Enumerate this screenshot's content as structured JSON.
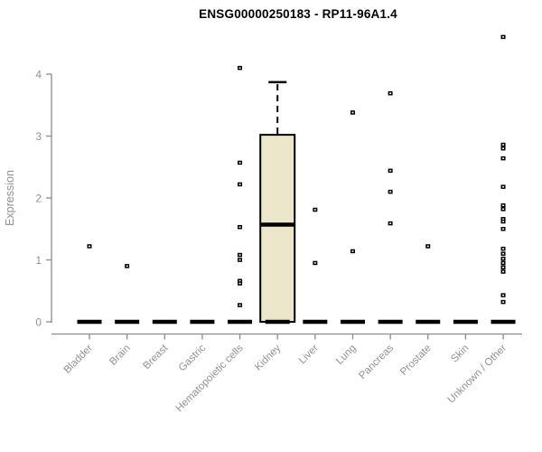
{
  "chart_data": {
    "type": "boxplot",
    "title": "ENSG00000250183 - RP11-96A1.4",
    "ylabel": "Expression",
    "ylim": [
      0,
      4.7
    ],
    "yticks": [
      0,
      1,
      2,
      3,
      4
    ],
    "grid": "off",
    "legend": null,
    "categories": [
      "Bladder",
      "Brain",
      "Breast",
      "Gastric",
      "Hematopoietic cells",
      "Kidney",
      "Liver",
      "Lung",
      "Pancreas",
      "Prostate",
      "Skin",
      "Unknown / Other"
    ],
    "baseline_value": 0,
    "boxes": [
      {
        "category": "Kidney",
        "q1": 0,
        "median": 1.57,
        "q3": 3.02,
        "whisker_low": 0,
        "whisker_high": 3.87
      }
    ],
    "outliers": {
      "Bladder": [
        1.22
      ],
      "Brain": [
        0.9
      ],
      "Breast": [],
      "Gastric": [],
      "Hematopoietic cells": [
        4.1,
        2.57,
        2.22,
        1.53,
        1.08,
        1.0,
        0.66,
        0.62,
        0.27
      ],
      "Kidney": [],
      "Liver": [
        1.81,
        0.95
      ],
      "Lung": [
        3.38,
        1.14
      ],
      "Pancreas": [
        3.69,
        2.44,
        2.1,
        1.59
      ],
      "Prostate": [
        1.22
      ],
      "Skin": [],
      "Unknown / Other": [
        4.6,
        2.86,
        2.8,
        2.64,
        2.18,
        1.88,
        1.82,
        1.66,
        1.62,
        1.5,
        1.18,
        1.1,
        1.02,
        0.95,
        0.88,
        0.81,
        0.43,
        0.32
      ]
    },
    "colors": {
      "box_fill": "#ECE7CB",
      "box_border": "#000000",
      "median": "#000000",
      "point": "#000000",
      "axis": "#8c8c8c",
      "tick_label": "#919191",
      "title": "#000000",
      "background": "#ffffff"
    }
  }
}
